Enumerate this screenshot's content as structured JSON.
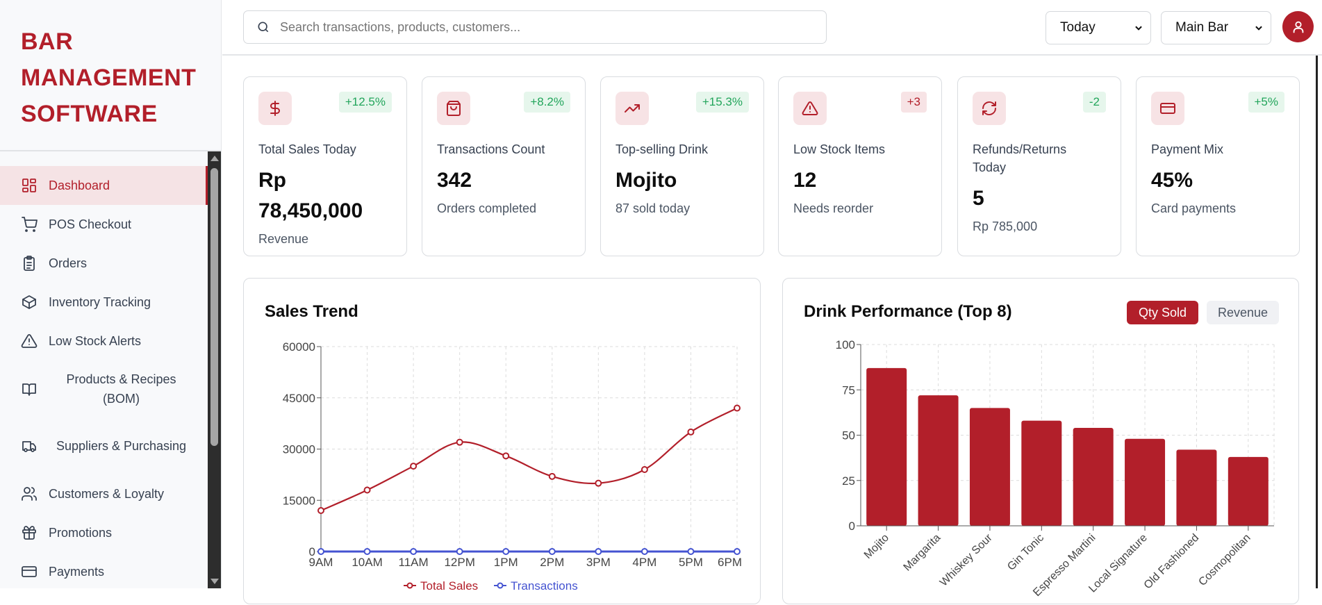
{
  "sidebar": {
    "logo_lines": [
      "BAR",
      "MANAGEMENT",
      "SOFTWARE"
    ],
    "items": [
      {
        "label": "Dashboard",
        "icon": "dashboard-icon",
        "active": true
      },
      {
        "label": "POS Checkout",
        "icon": "cart-icon"
      },
      {
        "label": "Orders",
        "icon": "clipboard-icon"
      },
      {
        "label": "Inventory Tracking",
        "icon": "box-icon"
      },
      {
        "label": "Low Stock Alerts",
        "icon": "warning-icon"
      },
      {
        "label": "Products & Recipes (BOM)",
        "icon": "book-icon"
      },
      {
        "label": "Suppliers & Purchasing",
        "icon": "truck-icon"
      },
      {
        "label": "Customers & Loyalty",
        "icon": "users-icon"
      },
      {
        "label": "Promotions",
        "icon": "gift-icon"
      },
      {
        "label": "Payments",
        "icon": "credit-card-icon"
      }
    ]
  },
  "header": {
    "search_placeholder": "Search transactions, products, customers...",
    "period_select": "Today",
    "location_select": "Main Bar"
  },
  "colors": {
    "accent": "#b21f2a",
    "positive": "#22a55b",
    "transactions": "#4453d1"
  },
  "kpis": [
    {
      "label": "Total Sales Today",
      "value": "Rp 78,450,000",
      "sub": "Revenue",
      "badge": "+12.5%",
      "icon": "dollar-icon",
      "badge_tone": "positive"
    },
    {
      "label": "Transactions Count",
      "value": "342",
      "sub": "Orders completed",
      "badge": "+8.2%",
      "icon": "shopping-bag-icon",
      "badge_tone": "positive"
    },
    {
      "label": "Top-selling Drink",
      "value": "Mojito",
      "sub": "87 sold today",
      "badge": "+15.3%",
      "icon": "trending-up-icon",
      "badge_tone": "positive"
    },
    {
      "label": "Low Stock Items",
      "value": "12",
      "sub": "Needs reorder",
      "badge": "+3",
      "icon": "warning-icon",
      "badge_tone": "negative"
    },
    {
      "label": "Refunds/Returns Today",
      "value": "5",
      "sub": "Rp 785,000",
      "badge": "-2",
      "icon": "refresh-icon",
      "badge_tone": "positive"
    },
    {
      "label": "Payment Mix",
      "value": "45%",
      "sub": "Card payments",
      "badge": "+5%",
      "icon": "credit-card-icon",
      "badge_tone": "positive"
    }
  ],
  "sales_panel": {
    "title": "Sales Trend"
  },
  "drink_panel": {
    "title": "Drink Performance (Top 8)",
    "toggle": [
      "Qty Sold",
      "Revenue"
    ],
    "active_toggle": "Qty Sold"
  },
  "chart_data": [
    {
      "type": "line",
      "title": "Sales Trend",
      "categories": [
        "9AM",
        "10AM",
        "11AM",
        "12PM",
        "1PM",
        "2PM",
        "3PM",
        "4PM",
        "5PM",
        "6PM"
      ],
      "series": [
        {
          "name": "Total Sales",
          "color": "#b21f2a",
          "values": [
            12000,
            18000,
            25000,
            32000,
            28000,
            22000,
            20000,
            24000,
            35000,
            42000
          ]
        },
        {
          "name": "Transactions",
          "color": "#4453d1",
          "values": [
            0,
            0,
            0,
            0,
            0,
            0,
            0,
            0,
            0,
            0
          ]
        }
      ],
      "yticks": [
        "0",
        "15000",
        "30000",
        "45000",
        "60000"
      ],
      "ylim": [
        0,
        60000
      ],
      "grid": true,
      "legend": "bottom"
    },
    {
      "type": "bar",
      "title": "Drink Performance (Top 8)",
      "categories": [
        "Mojito",
        "Margarita",
        "Whiskey Sour",
        "Gin Tonic",
        "Espresso Martini",
        "Local Signature",
        "Old Fashioned",
        "Cosmopolitan"
      ],
      "values": [
        87,
        72,
        65,
        58,
        54,
        48,
        42,
        38
      ],
      "color": "#b21f2a",
      "yticks": [
        "0",
        "25",
        "50",
        "75",
        "100"
      ],
      "ylim": [
        0,
        100
      ],
      "grid": true
    }
  ]
}
